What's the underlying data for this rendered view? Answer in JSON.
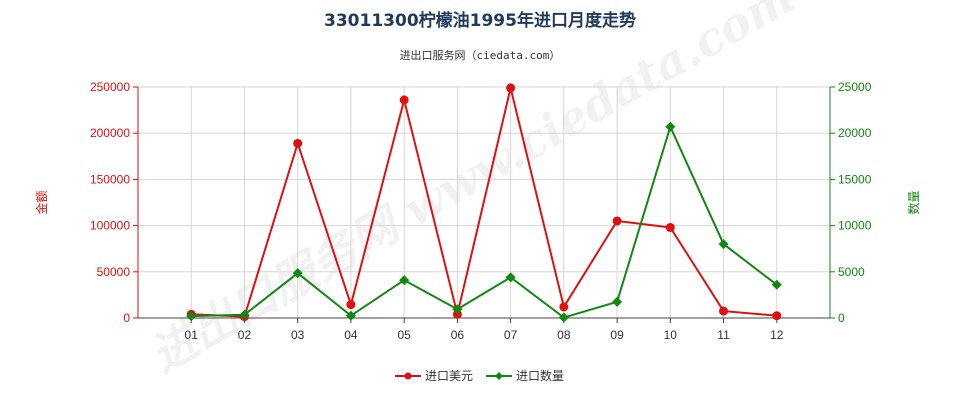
{
  "chart_data": {
    "type": "line",
    "title": "33011300柠檬油1995年进口月度走势",
    "subtitle": "进出口服务网（ciedata.com）",
    "watermark": "进出口服务网 www.ciedata.com",
    "categories": [
      "01",
      "02",
      "03",
      "04",
      "05",
      "06",
      "07",
      "08",
      "09",
      "10",
      "11",
      "12"
    ],
    "y_left": {
      "label": "金额",
      "ylim": [
        0,
        250000
      ],
      "ticks": [
        "0",
        "50000",
        "100000",
        "150000",
        "200000",
        "250000"
      ],
      "color": "#dd1111"
    },
    "y_right": {
      "label": "数量",
      "ylim": [
        0,
        25000
      ],
      "ticks": [
        "0",
        "5000",
        "10000",
        "15000",
        "20000",
        "25000"
      ],
      "color": "#118811"
    },
    "grid": true,
    "legend_position": "bottom-center",
    "series": [
      {
        "name": "进口美元",
        "axis": "left",
        "color": "#dd1111",
        "marker": "circle",
        "values": [
          4000,
          1500,
          189000,
          14500,
          236000,
          4000,
          249000,
          12000,
          105000,
          98000,
          7500,
          2500
        ]
      },
      {
        "name": "进口数量",
        "axis": "right",
        "color": "#118811",
        "marker": "diamond",
        "values": [
          200,
          350,
          4850,
          250,
          4100,
          950,
          4400,
          50,
          1750,
          20700,
          8000,
          3600
        ]
      }
    ]
  }
}
